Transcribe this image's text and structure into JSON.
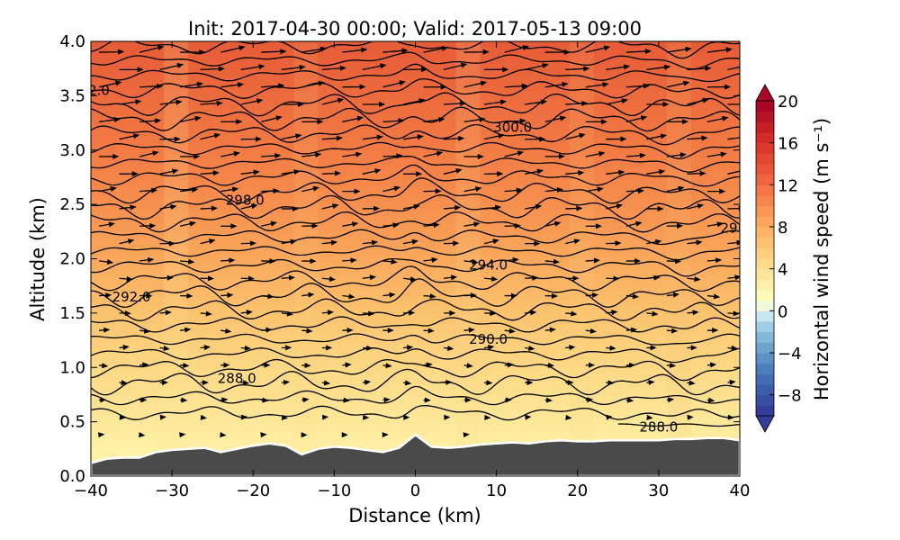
{
  "chart_data": {
    "type": "heatmap",
    "title": "Init: 2017-04-30 00:00; Valid: 2017-05-13 09:00",
    "xlabel": "Distance (km)",
    "ylabel": "Altitude (km)",
    "xlim": [
      -40,
      40
    ],
    "ylim": [
      0.0,
      4.0
    ],
    "x_ticks": [
      "−40",
      "−30",
      "−20",
      "−10",
      "0",
      "10",
      "20",
      "30",
      "40"
    ],
    "y_ticks": [
      "0.0",
      "0.5",
      "1.0",
      "1.5",
      "2.0",
      "2.5",
      "3.0",
      "3.5",
      "4.0"
    ],
    "colorbar": {
      "label": "Horizontal wind speed (m s⁻¹)",
      "range": [
        -10,
        20
      ],
      "ticks": [
        "−8",
        "−4",
        "0",
        "4",
        "8",
        "12",
        "16",
        "20"
      ],
      "colormap": "RdYlBu_r"
    },
    "filled_field": {
      "variable": "horizontal wind speed",
      "altitude_km": [
        0.0,
        0.5,
        1.0,
        1.5,
        2.0,
        2.5,
        3.0,
        3.5,
        4.0
      ],
      "approx_speed_m_s": [
        3,
        4,
        5.5,
        6.5,
        8.5,
        10,
        11.5,
        12.5,
        13.5
      ]
    },
    "theta_contour_labels": [
      {
        "text": "288.0",
        "x": -22,
        "y": 0.9
      },
      {
        "text": "288.0",
        "x": 30,
        "y": 0.45
      },
      {
        "text": "290.0",
        "x": 9,
        "y": 1.26
      },
      {
        "text": "292.0",
        "x": -35,
        "y": 1.65
      },
      {
        "text": "294.0",
        "x": 9,
        "y": 1.94
      },
      {
        "text": "298.0",
        "x": -21,
        "y": 2.54
      },
      {
        "text": "300.0",
        "x": 12,
        "y": 3.21
      },
      {
        "text": "2.0",
        "x": -39,
        "y": 3.55
      },
      {
        "text": "29(",
        "x": 39,
        "y": 2.28
      }
    ],
    "terrain_height_km": {
      "x": [
        -40,
        -38,
        -36,
        -34,
        -32,
        -30,
        -28,
        -26,
        -24,
        -22,
        -20,
        -18,
        -16,
        -14,
        -12,
        -10,
        -8,
        -6,
        -4,
        -2,
        0,
        2,
        4,
        6,
        8,
        10,
        12,
        14,
        16,
        18,
        20,
        22,
        24,
        26,
        28,
        30,
        32,
        34,
        36,
        38,
        40
      ],
      "y": [
        0.12,
        0.16,
        0.17,
        0.17,
        0.22,
        0.24,
        0.25,
        0.26,
        0.22,
        0.25,
        0.28,
        0.3,
        0.28,
        0.2,
        0.25,
        0.27,
        0.26,
        0.24,
        0.22,
        0.26,
        0.38,
        0.27,
        0.26,
        0.27,
        0.29,
        0.3,
        0.31,
        0.3,
        0.32,
        0.33,
        0.32,
        0.32,
        0.33,
        0.33,
        0.33,
        0.33,
        0.34,
        0.34,
        0.35,
        0.35,
        0.33
      ]
    },
    "wind_vectors": "quiver arrows pointing mostly eastward; length increases with altitude",
    "grid": false,
    "colors": {
      "terrain": "#4a4a4a",
      "contour": "#000000"
    }
  }
}
